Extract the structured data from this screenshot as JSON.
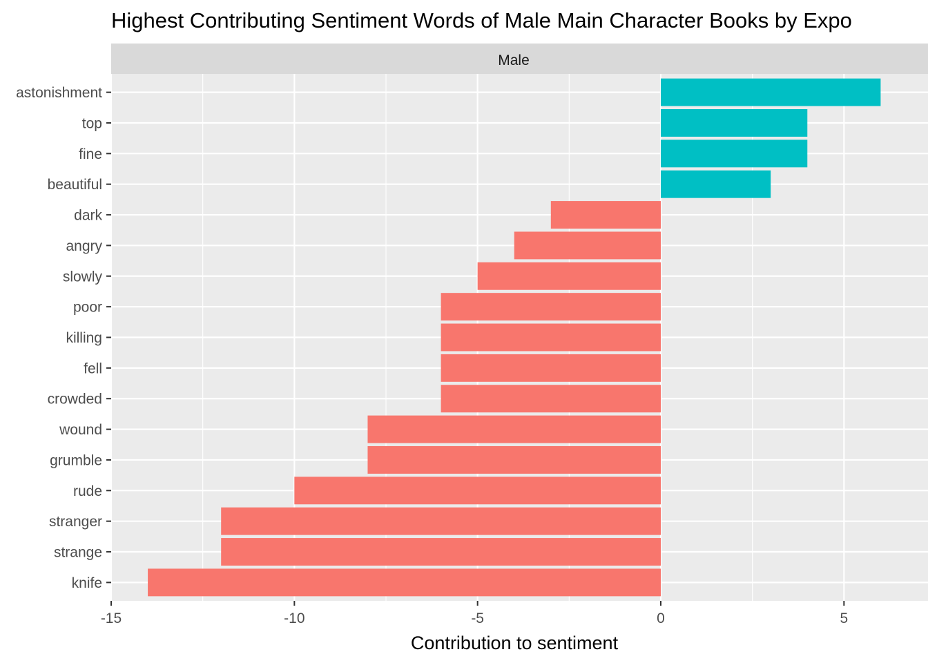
{
  "chart_data": {
    "type": "bar",
    "orientation": "horizontal",
    "title": "Highest Contributing Sentiment Words of Male Main Character Books by Expo",
    "facet_label": "Male",
    "xlabel": "Contribution to sentiment",
    "ylabel": "",
    "xlim": [
      -15,
      6.5
    ],
    "x_ticks": [
      -15,
      -10,
      -5,
      0,
      5
    ],
    "x_tick_labels": [
      "-15",
      "-10",
      "-5",
      "0",
      "5"
    ],
    "grid": true,
    "legend": "none",
    "categories": [
      "astonishment",
      "top",
      "fine",
      "beautiful",
      "dark",
      "angry",
      "slowly",
      "poor",
      "killing",
      "fell",
      "crowded",
      "wound",
      "grumble",
      "rude",
      "stranger",
      "strange",
      "knife"
    ],
    "values": [
      6,
      4,
      4,
      3,
      -3,
      -4,
      -5,
      -6,
      -6,
      -6,
      -6,
      -8,
      -8,
      -10,
      -12,
      -12,
      -14
    ],
    "colors": {
      "positive": "#00BFC4",
      "negative": "#F8766D",
      "panel": "#EBEBEB",
      "strip": "#D9D9D9",
      "grid": "#FFFFFF"
    }
  }
}
